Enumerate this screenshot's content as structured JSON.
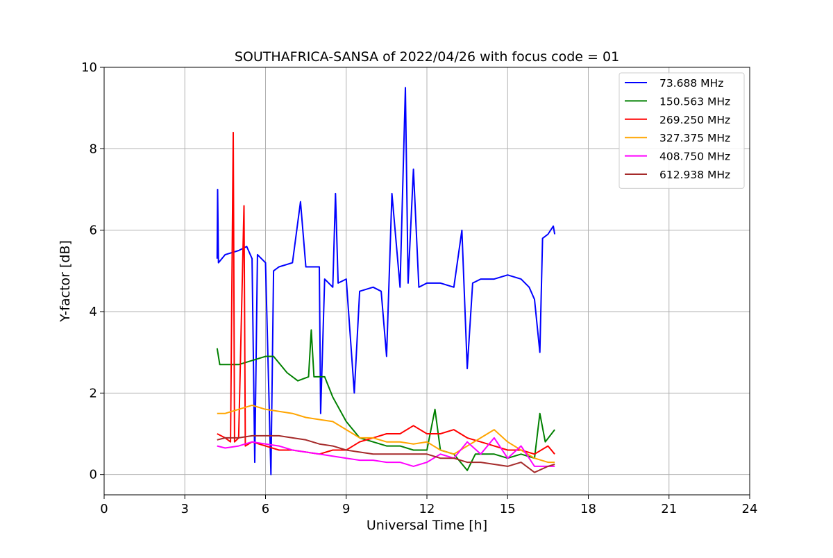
{
  "chart_data": {
    "type": "line",
    "title": "SOUTHAFRICA-SANSA of 2022/04/26 with focus code = 01",
    "xlabel": "Universal Time [h]",
    "ylabel": "Y-factor [dB]",
    "xlim": [
      0,
      24
    ],
    "ylim": [
      -0.5,
      10
    ],
    "xticks": [
      0,
      3,
      6,
      9,
      12,
      15,
      18,
      21,
      24
    ],
    "xtick_labels": [
      "0",
      "3",
      "6",
      "9",
      "12",
      "15",
      "18",
      "21",
      "24"
    ],
    "yticks": [
      0,
      2,
      4,
      6,
      8,
      10
    ],
    "ytick_labels": [
      "0",
      "2",
      "4",
      "6",
      "8",
      "10"
    ],
    "grid": true,
    "legend_position": "top-right",
    "series": [
      {
        "name": " 73.688 MHz",
        "color": "#0000ff",
        "points": [
          [
            4.2,
            5.3
          ],
          [
            4.22,
            7.0
          ],
          [
            4.25,
            5.2
          ],
          [
            4.5,
            5.4
          ],
          [
            5.0,
            5.5
          ],
          [
            5.3,
            5.6
          ],
          [
            5.5,
            5.3
          ],
          [
            5.6,
            0.3
          ],
          [
            5.7,
            5.4
          ],
          [
            6.0,
            5.2
          ],
          [
            6.1,
            2.6
          ],
          [
            6.2,
            0.0
          ],
          [
            6.3,
            5.0
          ],
          [
            6.5,
            5.1
          ],
          [
            7.0,
            5.2
          ],
          [
            7.3,
            6.7
          ],
          [
            7.5,
            5.1
          ],
          [
            8.0,
            5.1
          ],
          [
            8.05,
            1.5
          ],
          [
            8.2,
            4.8
          ],
          [
            8.5,
            4.6
          ],
          [
            8.6,
            6.9
          ],
          [
            8.7,
            4.7
          ],
          [
            9.0,
            4.8
          ],
          [
            9.3,
            2.0
          ],
          [
            9.5,
            4.5
          ],
          [
            10.0,
            4.6
          ],
          [
            10.3,
            4.5
          ],
          [
            10.5,
            2.9
          ],
          [
            10.7,
            6.9
          ],
          [
            11.0,
            4.6
          ],
          [
            11.2,
            9.5
          ],
          [
            11.3,
            4.7
          ],
          [
            11.5,
            7.5
          ],
          [
            11.7,
            4.6
          ],
          [
            12.0,
            4.7
          ],
          [
            12.5,
            4.7
          ],
          [
            13.0,
            4.6
          ],
          [
            13.3,
            6.0
          ],
          [
            13.5,
            2.6
          ],
          [
            13.7,
            4.7
          ],
          [
            14.0,
            4.8
          ],
          [
            14.5,
            4.8
          ],
          [
            15.0,
            4.9
          ],
          [
            15.5,
            4.8
          ],
          [
            15.8,
            4.6
          ],
          [
            16.0,
            4.3
          ],
          [
            16.2,
            3.0
          ],
          [
            16.3,
            5.8
          ],
          [
            16.5,
            5.9
          ],
          [
            16.7,
            6.1
          ],
          [
            16.75,
            5.9
          ]
        ]
      },
      {
        "name": "150.563 MHz",
        "color": "#008000",
        "points": [
          [
            4.2,
            3.1
          ],
          [
            4.3,
            2.7
          ],
          [
            4.6,
            2.7
          ],
          [
            5.0,
            2.7
          ],
          [
            5.5,
            2.8
          ],
          [
            6.0,
            2.9
          ],
          [
            6.3,
            2.9
          ],
          [
            6.8,
            2.5
          ],
          [
            7.2,
            2.3
          ],
          [
            7.6,
            2.4
          ],
          [
            7.7,
            3.55
          ],
          [
            7.8,
            2.4
          ],
          [
            8.2,
            2.4
          ],
          [
            8.5,
            1.9
          ],
          [
            9.0,
            1.3
          ],
          [
            9.5,
            0.9
          ],
          [
            10.0,
            0.8
          ],
          [
            10.5,
            0.7
          ],
          [
            11.0,
            0.7
          ],
          [
            11.5,
            0.6
          ],
          [
            12.0,
            0.6
          ],
          [
            12.3,
            1.6
          ],
          [
            12.5,
            0.6
          ],
          [
            13.0,
            0.5
          ],
          [
            13.5,
            0.1
          ],
          [
            13.8,
            0.5
          ],
          [
            14.5,
            0.5
          ],
          [
            15.0,
            0.4
          ],
          [
            15.5,
            0.5
          ],
          [
            16.0,
            0.4
          ],
          [
            16.2,
            1.5
          ],
          [
            16.4,
            0.8
          ],
          [
            16.75,
            1.1
          ]
        ]
      },
      {
        "name": "269.250 MHz",
        "color": "#ff0000",
        "points": [
          [
            4.2,
            1.0
          ],
          [
            4.5,
            0.9
          ],
          [
            4.7,
            0.8
          ],
          [
            4.8,
            8.4
          ],
          [
            4.85,
            0.8
          ],
          [
            5.0,
            0.9
          ],
          [
            5.2,
            6.6
          ],
          [
            5.25,
            0.7
          ],
          [
            5.5,
            0.8
          ],
          [
            6.0,
            0.7
          ],
          [
            6.5,
            0.6
          ],
          [
            7.0,
            0.6
          ],
          [
            8.0,
            0.5
          ],
          [
            8.5,
            0.6
          ],
          [
            9.0,
            0.6
          ],
          [
            9.5,
            0.8
          ],
          [
            10.0,
            0.9
          ],
          [
            10.5,
            1.0
          ],
          [
            11.0,
            1.0
          ],
          [
            11.5,
            1.2
          ],
          [
            12.0,
            1.0
          ],
          [
            12.5,
            1.0
          ],
          [
            13.0,
            1.1
          ],
          [
            13.5,
            0.9
          ],
          [
            14.0,
            0.8
          ],
          [
            14.5,
            0.7
          ],
          [
            15.0,
            0.6
          ],
          [
            15.5,
            0.6
          ],
          [
            16.0,
            0.5
          ],
          [
            16.5,
            0.7
          ],
          [
            16.75,
            0.5
          ]
        ]
      },
      {
        "name": "327.375 MHz",
        "color": "#ffa500",
        "points": [
          [
            4.2,
            1.5
          ],
          [
            4.5,
            1.5
          ],
          [
            5.0,
            1.6
          ],
          [
            5.5,
            1.7
          ],
          [
            6.0,
            1.6
          ],
          [
            6.5,
            1.55
          ],
          [
            7.0,
            1.5
          ],
          [
            7.5,
            1.4
          ],
          [
            8.0,
            1.35
          ],
          [
            8.5,
            1.3
          ],
          [
            9.0,
            1.1
          ],
          [
            9.5,
            0.9
          ],
          [
            10.0,
            0.9
          ],
          [
            10.5,
            0.8
          ],
          [
            11.0,
            0.8
          ],
          [
            11.5,
            0.75
          ],
          [
            12.0,
            0.8
          ],
          [
            12.5,
            0.6
          ],
          [
            13.0,
            0.5
          ],
          [
            13.5,
            0.7
          ],
          [
            14.0,
            0.9
          ],
          [
            14.5,
            1.1
          ],
          [
            15.0,
            0.8
          ],
          [
            15.5,
            0.6
          ],
          [
            16.0,
            0.4
          ],
          [
            16.5,
            0.3
          ],
          [
            16.75,
            0.3
          ]
        ]
      },
      {
        "name": "408.750 MHz",
        "color": "#ff00ff",
        "points": [
          [
            4.2,
            0.7
          ],
          [
            4.5,
            0.65
          ],
          [
            5.0,
            0.7
          ],
          [
            5.5,
            0.8
          ],
          [
            6.0,
            0.75
          ],
          [
            6.5,
            0.7
          ],
          [
            7.0,
            0.6
          ],
          [
            7.5,
            0.55
          ],
          [
            8.0,
            0.5
          ],
          [
            8.5,
            0.45
          ],
          [
            9.0,
            0.4
          ],
          [
            9.5,
            0.35
          ],
          [
            10.0,
            0.35
          ],
          [
            10.5,
            0.3
          ],
          [
            11.0,
            0.3
          ],
          [
            11.5,
            0.2
          ],
          [
            12.0,
            0.3
          ],
          [
            12.5,
            0.5
          ],
          [
            13.0,
            0.4
          ],
          [
            13.5,
            0.8
          ],
          [
            14.0,
            0.5
          ],
          [
            14.5,
            0.9
          ],
          [
            15.0,
            0.4
          ],
          [
            15.5,
            0.7
          ],
          [
            16.0,
            0.2
          ],
          [
            16.5,
            0.2
          ],
          [
            16.75,
            0.2
          ]
        ]
      },
      {
        "name": "612.938 MHz",
        "color": "#a52a2a",
        "points": [
          [
            4.2,
            0.85
          ],
          [
            4.5,
            0.9
          ],
          [
            5.0,
            0.9
          ],
          [
            5.5,
            0.95
          ],
          [
            6.0,
            0.95
          ],
          [
            6.5,
            0.95
          ],
          [
            7.0,
            0.9
          ],
          [
            7.5,
            0.85
          ],
          [
            8.0,
            0.75
          ],
          [
            8.5,
            0.7
          ],
          [
            9.0,
            0.6
          ],
          [
            9.5,
            0.55
          ],
          [
            10.0,
            0.5
          ],
          [
            10.5,
            0.5
          ],
          [
            11.0,
            0.5
          ],
          [
            11.5,
            0.5
          ],
          [
            12.0,
            0.5
          ],
          [
            12.5,
            0.4
          ],
          [
            13.0,
            0.4
          ],
          [
            13.5,
            0.3
          ],
          [
            14.0,
            0.3
          ],
          [
            14.5,
            0.25
          ],
          [
            15.0,
            0.2
          ],
          [
            15.5,
            0.3
          ],
          [
            16.0,
            0.05
          ],
          [
            16.5,
            0.2
          ],
          [
            16.75,
            0.25
          ]
        ]
      }
    ]
  }
}
